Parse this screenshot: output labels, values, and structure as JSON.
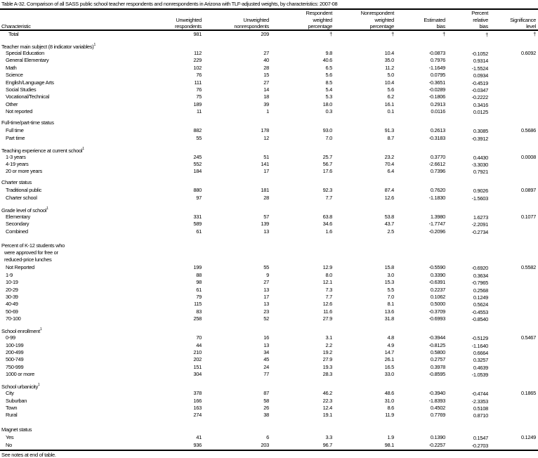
{
  "title": "Table A-32. Comparison of all SASS public school teacher respondents and nonrespondents in Arizona with TLF-adjusted weights, by characteristics: 2007-08",
  "columns": {
    "characteristic": "Characteristic",
    "headers": [
      [
        "Unweighted",
        "respondents"
      ],
      [
        "Unweighted",
        "nonrespondents"
      ],
      [
        "Respondent",
        "weighted",
        "percentage"
      ],
      [
        "Nonrespondent",
        "weighted",
        "percentage"
      ],
      [
        "Estimated",
        "bias"
      ],
      [
        "Percent",
        "relative",
        "bias"
      ],
      [
        "Significance",
        "level"
      ]
    ]
  },
  "total": {
    "label": "Total",
    "values": [
      "981",
      "209",
      "†",
      "†",
      "†",
      "†",
      "†"
    ]
  },
  "sections": [
    {
      "label": [
        "Teacher main subject (8 indicator variables)"
      ],
      "sup": "1",
      "rows": [
        {
          "label": "Special Education",
          "values": [
            "112",
            "27",
            "9.8",
            "10.4",
            "-0.0873",
            "-0.1052",
            "0.6092"
          ]
        },
        {
          "label": "General Elementary",
          "values": [
            "229",
            "40",
            "40.6",
            "35.0",
            "0.7976",
            "0.9314",
            ""
          ]
        },
        {
          "label": "Math",
          "values": [
            "102",
            "28",
            "6.5",
            "11.2",
            "-1.1649",
            "-1.5524",
            ""
          ]
        },
        {
          "label": "Science",
          "values": [
            "76",
            "15",
            "5.6",
            "5.0",
            "0.0795",
            "0.0934",
            ""
          ]
        },
        {
          "label": "English/Language Arts",
          "values": [
            "111",
            "27",
            "8.5",
            "10.4",
            "-0.3651",
            "-0.4519",
            ""
          ]
        },
        {
          "label": "Social Studies",
          "values": [
            "76",
            "14",
            "5.4",
            "5.6",
            "-0.0289",
            "-0.0347",
            ""
          ]
        },
        {
          "label": "Vocational/Technical",
          "values": [
            "75",
            "18",
            "5.3",
            "6.2",
            "-0.1806",
            "-0.2222",
            ""
          ]
        },
        {
          "label": "Other",
          "values": [
            "189",
            "39",
            "18.0",
            "16.1",
            "0.2913",
            "0.3416",
            ""
          ]
        },
        {
          "label": "Not reported",
          "values": [
            "11",
            "1",
            "0.3",
            "0.1",
            "0.0116",
            "0.0125",
            ""
          ]
        }
      ]
    },
    {
      "label": [
        "Full-time/part-time status"
      ],
      "sup": "",
      "rows": [
        {
          "label": "Full time",
          "values": [
            "882",
            "178",
            "93.0",
            "91.3",
            "0.2613",
            "0.3085",
            "0.5686"
          ]
        },
        {
          "label": "Part time",
          "values": [
            "55",
            "12",
            "7.0",
            "8.7",
            "-0.3183",
            "-0.3912",
            ""
          ]
        }
      ]
    },
    {
      "label": [
        "Teaching experience at current school"
      ],
      "sup": "1",
      "rows": [
        {
          "label": "1-3 years",
          "values": [
            "245",
            "51",
            "25.7",
            "23.2",
            "0.3770",
            "0.4430",
            "0.0008"
          ]
        },
        {
          "label": "4-19 years",
          "values": [
            "552",
            "141",
            "56.7",
            "70.4",
            "-2.6612",
            "-3.3030",
            ""
          ]
        },
        {
          "label": "20 or more years",
          "values": [
            "184",
            "17",
            "17.6",
            "6.4",
            "0.7396",
            "0.7921",
            ""
          ]
        }
      ]
    },
    {
      "label": [
        "Charter status"
      ],
      "sup": "",
      "rows": [
        {
          "label": "Traditional public",
          "values": [
            "880",
            "181",
            "92.3",
            "87.4",
            "0.7620",
            "0.9026",
            "0.0897"
          ]
        },
        {
          "label": "Charter school",
          "values": [
            "97",
            "28",
            "7.7",
            "12.6",
            "-1.1830",
            "-1.5603",
            ""
          ]
        }
      ]
    },
    {
      "label": [
        "Grade level of school"
      ],
      "sup": "1",
      "rows": [
        {
          "label": "Elementary",
          "values": [
            "331",
            "57",
            "63.8",
            "53.8",
            "1.3980",
            "1.6273",
            "0.1077"
          ]
        },
        {
          "label": "Secondary",
          "values": [
            "589",
            "139",
            "34.6",
            "43.7",
            "-1.7747",
            "-2.2091",
            ""
          ]
        },
        {
          "label": "Combined",
          "values": [
            "61",
            "13",
            "1.6",
            "2.5",
            "-0.2096",
            "-0.2734",
            ""
          ]
        }
      ]
    },
    {
      "label": [
        "Percent of K-12 students who",
        "  were approved for free or",
        "  reduced-price lunches"
      ],
      "sup": "",
      "rows": [
        {
          "label": "Not Reported",
          "values": [
            "199",
            "55",
            "12.9",
            "15.8",
            "-0.5590",
            "-0.6920",
            "0.5582"
          ]
        },
        {
          "label": "1-9",
          "values": [
            "88",
            "9",
            "8.0",
            "3.0",
            "0.3390",
            "0.3634",
            ""
          ]
        },
        {
          "label": "10-19",
          "values": [
            "98",
            "27",
            "12.1",
            "15.3",
            "-0.6391",
            "-0.7965",
            ""
          ]
        },
        {
          "label": "20-29",
          "values": [
            "61",
            "13",
            "7.3",
            "5.5",
            "0.2237",
            "0.2568",
            ""
          ]
        },
        {
          "label": "30-39",
          "values": [
            "79",
            "17",
            "7.7",
            "7.0",
            "0.1062",
            "0.1249",
            ""
          ]
        },
        {
          "label": "40-49",
          "values": [
            "115",
            "13",
            "12.6",
            "8.1",
            "0.5000",
            "0.5624",
            ""
          ]
        },
        {
          "label": "50-69",
          "values": [
            "83",
            "23",
            "11.6",
            "13.6",
            "-0.3709",
            "-0.4553",
            ""
          ]
        },
        {
          "label": "70-100",
          "values": [
            "258",
            "52",
            "27.9",
            "31.8",
            "-0.6993",
            "-0.8540",
            ""
          ]
        }
      ]
    },
    {
      "label": [
        "School enrollment"
      ],
      "sup": "1",
      "rows": [
        {
          "label": "0-99",
          "values": [
            "70",
            "16",
            "3.1",
            "4.8",
            "-0.3944",
            "-0.5129",
            "0.5467"
          ]
        },
        {
          "label": "100-199",
          "values": [
            "44",
            "13",
            "2.2",
            "4.9",
            "-0.8125",
            "-1.1640",
            ""
          ]
        },
        {
          "label": "200-499",
          "values": [
            "210",
            "34",
            "19.2",
            "14.7",
            "0.5800",
            "0.6664",
            ""
          ]
        },
        {
          "label": "500-749",
          "values": [
            "202",
            "45",
            "27.9",
            "26.1",
            "0.2757",
            "0.3257",
            ""
          ]
        },
        {
          "label": "750-999",
          "values": [
            "151",
            "24",
            "19.3",
            "16.5",
            "0.3978",
            "0.4639",
            ""
          ]
        },
        {
          "label": "1000 or more",
          "values": [
            "304",
            "77",
            "28.3",
            "33.0",
            "-0.8595",
            "-1.0539",
            ""
          ]
        }
      ]
    },
    {
      "label": [
        "School urbanicity"
      ],
      "sup": "1",
      "rows": [
        {
          "label": "City",
          "values": [
            "378",
            "87",
            "46.2",
            "48.6",
            "-0.3940",
            "-0.4744",
            "0.1865"
          ]
        },
        {
          "label": "Suburban",
          "values": [
            "166",
            "58",
            "22.3",
            "31.0",
            "-1.8393",
            "-2.3353",
            ""
          ]
        },
        {
          "label": "Town",
          "values": [
            "163",
            "26",
            "12.4",
            "8.6",
            "0.4502",
            "0.5108",
            ""
          ]
        },
        {
          "label": "Rural",
          "values": [
            "274",
            "38",
            "19.1",
            "11.9",
            "0.7769",
            "0.8710",
            ""
          ]
        }
      ]
    },
    {
      "label": [
        "Magnet status"
      ],
      "sup": "",
      "rows": [
        {
          "label": "Yes",
          "values": [
            "41",
            "6",
            "3.3",
            "1.9",
            "0.1390",
            "0.1547",
            "0.1249"
          ]
        },
        {
          "label": "No",
          "values": [
            "936",
            "203",
            "96.7",
            "98.1",
            "-0.2257",
            "-0.2703",
            ""
          ]
        }
      ]
    }
  ],
  "footnote": "See notes at end of table."
}
